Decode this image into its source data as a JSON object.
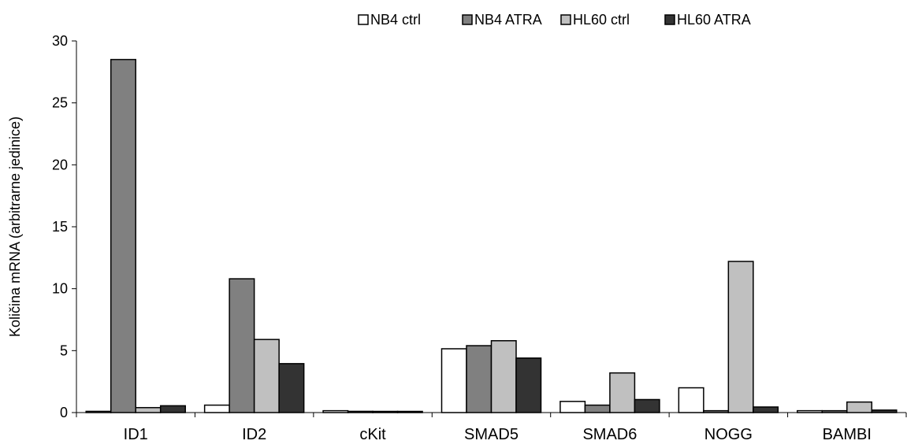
{
  "chart_data": {
    "type": "bar",
    "title": "",
    "xlabel": "",
    "ylabel": "Količina mRNA (arbitrarne jedinice)",
    "ylim": [
      0,
      30
    ],
    "yticks": [
      0,
      5,
      10,
      15,
      20,
      25,
      30
    ],
    "grid": false,
    "legend_position": "top-right",
    "categories": [
      "ID1",
      "ID2",
      "cKit",
      "SMAD5",
      "SMAD6",
      "NOGG",
      "BAMBI"
    ],
    "series": [
      {
        "name": "NB4 ctrl",
        "color": "#ffffff",
        "values": [
          0.1,
          0.6,
          0.15,
          5.15,
          0.9,
          2.0,
          0.15
        ]
      },
      {
        "name": "NB4 ATRA",
        "color": "#808080",
        "values": [
          28.5,
          10.8,
          0.1,
          5.4,
          0.6,
          0.15,
          0.15
        ]
      },
      {
        "name": "HL60 ctrl",
        "color": "#c0c0c0",
        "values": [
          0.4,
          5.9,
          0.0,
          5.8,
          3.2,
          12.2,
          0.85
        ]
      },
      {
        "name": "HL60 ATRA",
        "color": "#333333",
        "values": [
          0.55,
          3.95,
          0.05,
          4.4,
          1.05,
          0.45,
          0.2
        ]
      }
    ]
  }
}
